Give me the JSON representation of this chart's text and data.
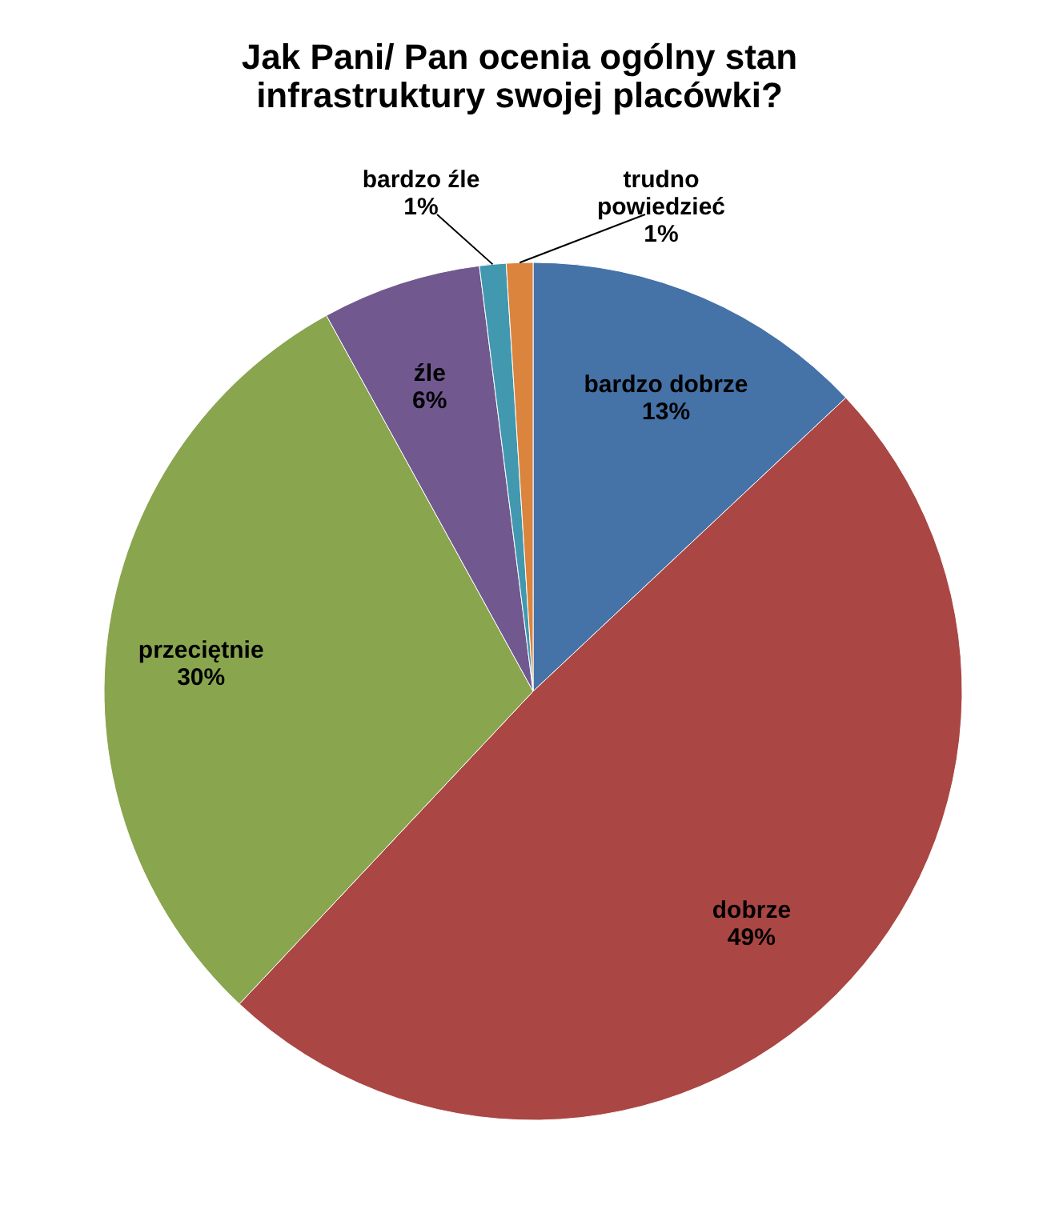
{
  "chart_data": {
    "type": "pie",
    "title": "Jak Pani/ Pan ocenia ogólny stan infrastruktury swojej placówki?",
    "categories": [
      "bardzo dobrze",
      "dobrze",
      "przeciętnie",
      "źle",
      "bardzo źle",
      "trudno powiedzieć"
    ],
    "values": [
      13,
      49,
      30,
      6,
      1,
      1
    ],
    "value_labels": [
      "13%",
      "49%",
      "30%",
      "6%",
      "1%",
      "1%"
    ],
    "colors": [
      "#4572a7",
      "#aa4643",
      "#89a54e",
      "#71588f",
      "#4198af",
      "#db843d"
    ],
    "legend": false
  }
}
